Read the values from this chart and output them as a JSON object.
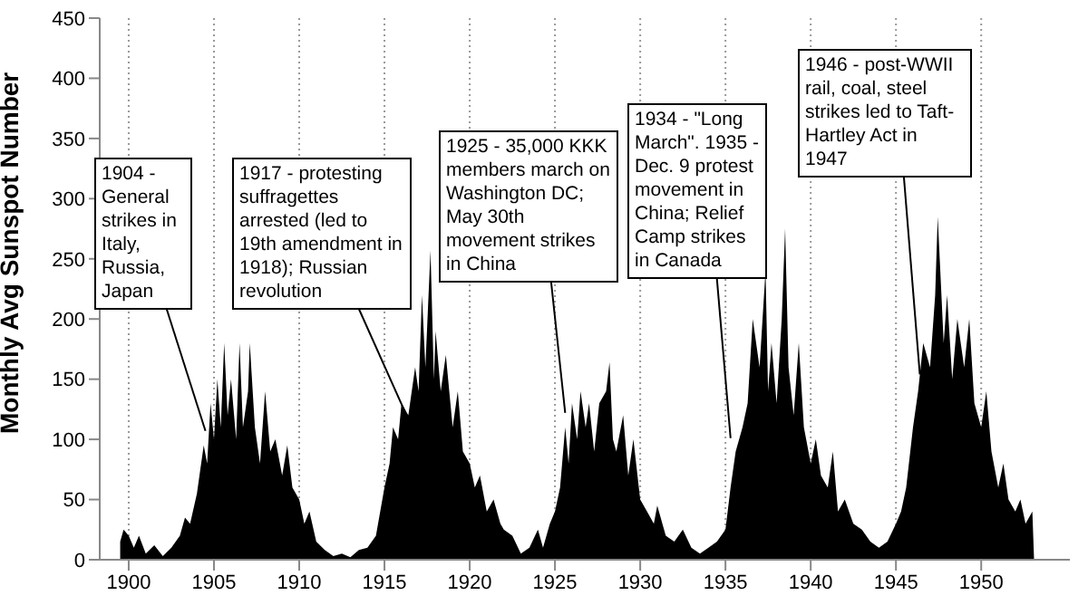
{
  "chart_data": {
    "type": "area",
    "ylabel": "Monthly Avg Sunspot Number",
    "x": [
      1899.5,
      1899.7,
      1900,
      1900.3,
      1900.6,
      1901,
      1901.5,
      1902,
      1902.5,
      1903,
      1903.3,
      1903.6,
      1904,
      1904.2,
      1904.4,
      1904.6,
      1904.8,
      1905,
      1905.2,
      1905.4,
      1905.6,
      1905.8,
      1906,
      1906.3,
      1906.5,
      1906.7,
      1907,
      1907.1,
      1907.4,
      1907.7,
      1908,
      1908.3,
      1908.6,
      1909,
      1909.3,
      1909.6,
      1910,
      1910.3,
      1910.6,
      1911,
      1911.5,
      1912,
      1912.5,
      1913,
      1913.5,
      1914,
      1914.5,
      1915,
      1915.3,
      1915.5,
      1915.8,
      1916,
      1916.4,
      1916.8,
      1917,
      1917.2,
      1917.4,
      1917.7,
      1917.9,
      1918,
      1918.3,
      1918.6,
      1919,
      1919.3,
      1919.6,
      1920,
      1920.3,
      1920.6,
      1921,
      1921.4,
      1921.8,
      1922,
      1922.5,
      1923,
      1923.5,
      1924,
      1924.3,
      1924.7,
      1925,
      1925.3,
      1925.6,
      1925.8,
      1926,
      1926.3,
      1926.5,
      1926.8,
      1927,
      1927.3,
      1927.6,
      1928,
      1928.2,
      1928.4,
      1928.6,
      1929,
      1929.3,
      1929.6,
      1930,
      1930.4,
      1930.8,
      1931,
      1931.5,
      1932,
      1932.5,
      1933,
      1933.5,
      1934,
      1934.5,
      1935,
      1935.3,
      1935.6,
      1936,
      1936.3,
      1936.6,
      1937,
      1937.35,
      1937.5,
      1937.7,
      1938,
      1938.3,
      1938.5,
      1938.7,
      1939,
      1939.3,
      1939.6,
      1940,
      1940.3,
      1940.6,
      1941,
      1941.3,
      1941.6,
      1942,
      1942.5,
      1943,
      1943.5,
      1944,
      1944.5,
      1945,
      1945.3,
      1945.6,
      1946,
      1946.3,
      1946.6,
      1947,
      1947.3,
      1947.45,
      1947.6,
      1947.8,
      1948,
      1948.3,
      1948.6,
      1949,
      1949.3,
      1949.6,
      1950,
      1950.3,
      1950.6,
      1951,
      1951.3,
      1951.6,
      1952,
      1952.3,
      1952.6,
      1953,
      1953.1
    ],
    "series": [
      {
        "color": "#000000",
        "values": [
          15,
          25,
          20,
          10,
          20,
          5,
          12,
          3,
          10,
          20,
          35,
          30,
          55,
          75,
          95,
          80,
          130,
          100,
          150,
          110,
          180,
          120,
          150,
          100,
          180,
          110,
          140,
          180,
          110,
          80,
          140,
          90,
          100,
          70,
          95,
          60,
          50,
          30,
          40,
          15,
          8,
          3,
          5,
          2,
          8,
          10,
          20,
          60,
          80,
          110,
          100,
          130,
          120,
          160,
          140,
          220,
          160,
          257,
          150,
          190,
          140,
          170,
          110,
          140,
          90,
          80,
          60,
          70,
          40,
          50,
          30,
          25,
          20,
          5,
          10,
          25,
          10,
          30,
          40,
          60,
          110,
          80,
          130,
          100,
          140,
          110,
          130,
          90,
          130,
          140,
          164,
          100,
          90,
          120,
          70,
          100,
          50,
          40,
          30,
          45,
          20,
          15,
          25,
          10,
          5,
          10,
          15,
          25,
          60,
          90,
          110,
          130,
          200,
          160,
          240,
          140,
          180,
          130,
          200,
          275,
          160,
          120,
          180,
          110,
          80,
          100,
          70,
          60,
          90,
          40,
          50,
          30,
          25,
          15,
          10,
          15,
          30,
          40,
          60,
          110,
          140,
          180,
          160,
          220,
          285,
          240,
          180,
          220,
          150,
          200,
          160,
          200,
          130,
          110,
          140,
          90,
          60,
          80,
          50,
          40,
          50,
          30,
          40,
          0
        ]
      }
    ],
    "xlim": [
      1898.3,
      1955.2
    ],
    "xticks": [
      1900,
      1905,
      1910,
      1915,
      1920,
      1925,
      1930,
      1935,
      1940,
      1945,
      1950
    ],
    "ylim": [
      0,
      450
    ],
    "yticks": [
      0,
      50,
      100,
      150,
      200,
      250,
      300,
      350,
      400,
      450
    ],
    "grid": "x",
    "annotations": [
      {
        "text": "1904 - General strikes in Italy, Russia, Japan",
        "x": 1904.5,
        "y": 107
      },
      {
        "text": "1917 - protesting suffragettes arrested (led to 19th amendment in 1918); Russian revolution",
        "x": 1916.2,
        "y": 123
      },
      {
        "text": "1925 - 35,000 KKK members march on Washington DC; May 30th movement strikes in China",
        "x": 1925.6,
        "y": 122
      },
      {
        "text": "1934 - \"Long March\". 1935 - Dec. 9 protest movement in China; Relief Camp strikes in Canada",
        "x": 1935.3,
        "y": 101
      },
      {
        "text": "1946 - post-WWII rail, coal, steel strikes led to Taft-Hartley Act in 1947",
        "x": 1946.4,
        "y": 154
      }
    ]
  }
}
